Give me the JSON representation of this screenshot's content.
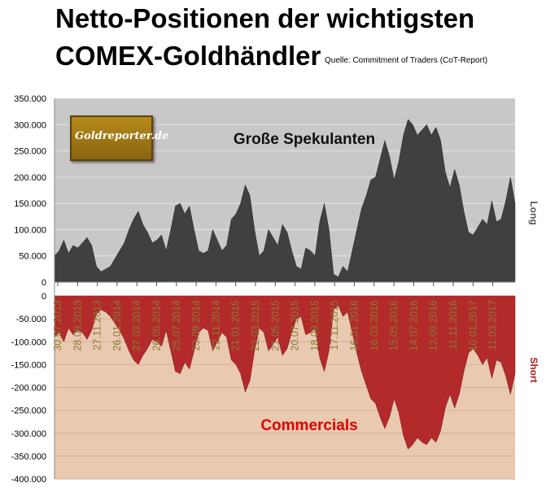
{
  "header": {
    "title_line1": "Netto-Positionen der wichtigsten",
    "title_line2": "COMEX-Goldhändler",
    "source": "Quelle: Commitment of Traders (CoT-Report)"
  },
  "logo": {
    "text": "Goldreporter.de"
  },
  "chart_data": {
    "type": "area",
    "top_panel": {
      "series_name": "Große Spekulanten",
      "side_label": "Long",
      "color": "#404040",
      "background": "#c8c8c8",
      "ylim": [
        0,
        350000
      ],
      "yticks": [
        "350.000",
        "300.000",
        "250.000",
        "200.000",
        "150.000",
        "100.000",
        "50.000",
        "0"
      ]
    },
    "bottom_panel": {
      "series_name": "Commercials",
      "side_label": "Short",
      "color": "#b22a2a",
      "background": "#e9c9b0",
      "ylim": [
        -400000,
        0
      ],
      "yticks": [
        "0",
        "-50.000",
        "-100.000",
        "-150.000",
        "-200.000",
        "-250.000",
        "-300.000",
        "-350.000",
        "-400.000"
      ]
    },
    "x_tick_labels": [
      "30.07.2013",
      "28.09.2013",
      "27.11.2013",
      "26.01.2014",
      "27.03.2014",
      "26.05.2014",
      "25.07.2014",
      "23.09.2014",
      "22.11.2014",
      "21.01.2015",
      "22.03.2015",
      "21.05.2015",
      "20.07.2015",
      "18.09.2015",
      "17.11.2015",
      "16.01.2016",
      "16.03.2016",
      "15.05.2016",
      "14.07.2016",
      "12.09.2016",
      "11.11.2016",
      "10.01.2017",
      "11.03.2017"
    ],
    "spekulanten": [
      50000,
      60000,
      80000,
      55000,
      70000,
      65000,
      75000,
      85000,
      70000,
      30000,
      20000,
      25000,
      30000,
      45000,
      60000,
      75000,
      100000,
      120000,
      135000,
      110000,
      95000,
      75000,
      80000,
      90000,
      60000,
      100000,
      145000,
      150000,
      130000,
      145000,
      100000,
      60000,
      55000,
      60000,
      100000,
      80000,
      60000,
      70000,
      120000,
      130000,
      150000,
      185000,
      165000,
      100000,
      50000,
      60000,
      100000,
      85000,
      70000,
      110000,
      95000,
      60000,
      30000,
      25000,
      65000,
      60000,
      50000,
      115000,
      150000,
      100000,
      15000,
      10000,
      30000,
      20000,
      60000,
      100000,
      140000,
      165000,
      195000,
      200000,
      235000,
      270000,
      240000,
      195000,
      230000,
      280000,
      310000,
      300000,
      280000,
      290000,
      300000,
      280000,
      295000,
      270000,
      210000,
      180000,
      215000,
      185000,
      135000,
      95000,
      90000,
      105000,
      120000,
      110000,
      155000,
      115000,
      120000,
      155000,
      200000,
      150000
    ],
    "commercials": [
      -90000,
      -80000,
      -100000,
      -70000,
      -85000,
      -75000,
      -80000,
      -95000,
      -75000,
      -40000,
      -30000,
      -35000,
      -45000,
      -60000,
      -75000,
      -95000,
      -120000,
      -140000,
      -150000,
      -130000,
      -115000,
      -95000,
      -100000,
      -110000,
      -75000,
      -120000,
      -165000,
      -170000,
      -145000,
      -160000,
      -120000,
      -80000,
      -70000,
      -75000,
      -120000,
      -100000,
      -80000,
      -90000,
      -140000,
      -150000,
      -170000,
      -210000,
      -185000,
      -120000,
      -70000,
      -80000,
      -120000,
      -105000,
      -90000,
      -130000,
      -115000,
      -80000,
      -50000,
      -45000,
      -85000,
      -80000,
      -70000,
      -135000,
      -165000,
      -120000,
      -30000,
      -20000,
      -45000,
      -35000,
      -80000,
      -125000,
      -165000,
      -195000,
      -225000,
      -235000,
      -265000,
      -290000,
      -265000,
      -225000,
      -255000,
      -305000,
      -335000,
      -325000,
      -310000,
      -320000,
      -325000,
      -310000,
      -320000,
      -295000,
      -245000,
      -215000,
      -245000,
      -215000,
      -165000,
      -125000,
      -115000,
      -130000,
      -150000,
      -135000,
      -180000,
      -140000,
      -145000,
      -175000,
      -215000,
      -170000
    ]
  }
}
